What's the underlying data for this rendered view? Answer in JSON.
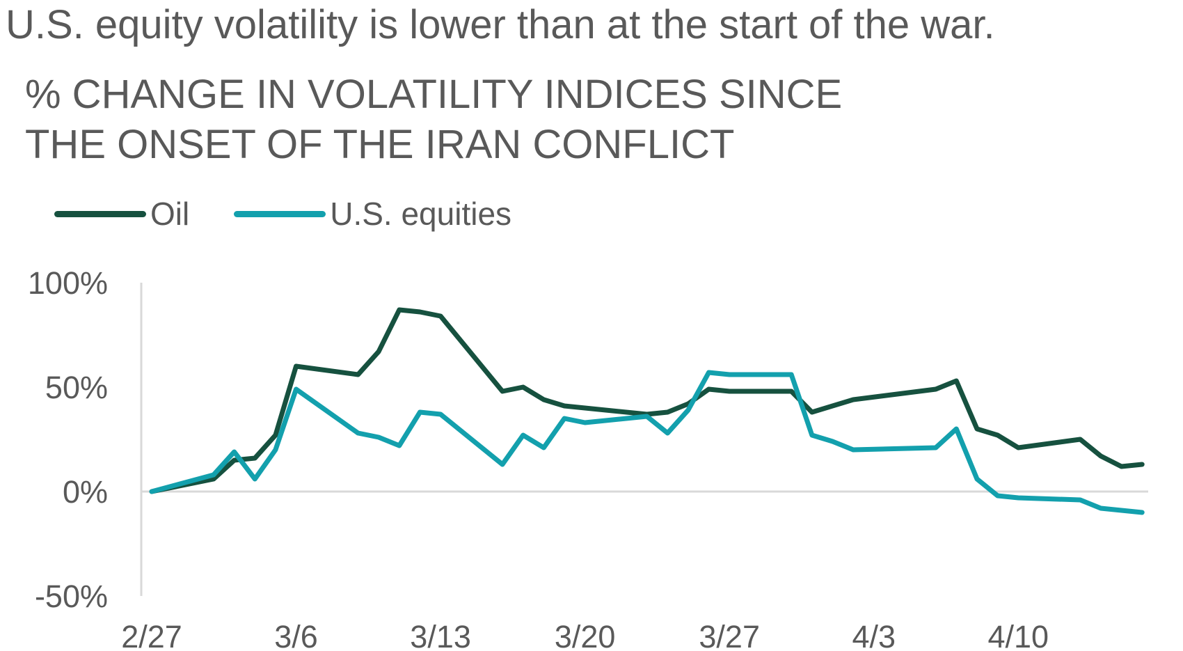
{
  "headline": "U.S. equity volatility is lower than at the start of the war.",
  "subtitle_lines": [
    "% CHANGE IN VOLATILITY INDICES SINCE",
    "THE ONSET OF THE IRAN CONFLICT"
  ],
  "colors": {
    "oil": "#16513F",
    "us_equities": "#13A0AD",
    "axis": "#D9D9D9",
    "text": "#595959"
  },
  "chart_data": {
    "type": "line",
    "title": "% CHANGE IN VOLATILITY INDICES SINCE THE ONSET OF THE IRAN CONFLICT",
    "xlabel": "",
    "ylabel": "",
    "ylim": [
      -50,
      100
    ],
    "y_ticks": [
      {
        "value": 100,
        "label": "100%"
      },
      {
        "value": 50,
        "label": "50%"
      },
      {
        "value": 0,
        "label": "0%"
      },
      {
        "value": -50,
        "label": "-50%"
      }
    ],
    "x_ticks": [
      {
        "date": "2/27",
        "label": "2/27"
      },
      {
        "date": "3/6",
        "label": "3/6"
      },
      {
        "date": "3/13",
        "label": "3/13"
      },
      {
        "date": "3/20",
        "label": "3/20"
      },
      {
        "date": "3/27",
        "label": "3/27"
      },
      {
        "date": "4/3",
        "label": "4/3"
      },
      {
        "date": "4/10",
        "label": "4/10"
      }
    ],
    "x": [
      "2/27",
      "3/2",
      "3/3",
      "3/4",
      "3/5",
      "3/6",
      "3/9",
      "3/10",
      "3/11",
      "3/12",
      "3/13",
      "3/16",
      "3/17",
      "3/18",
      "3/19",
      "3/20",
      "3/23",
      "3/24",
      "3/25",
      "3/26",
      "3/27",
      "3/30",
      "3/31",
      "4/1",
      "4/2",
      "4/6",
      "4/7",
      "4/8",
      "4/9",
      "4/10",
      "4/13",
      "4/14",
      "4/15",
      "4/16"
    ],
    "legend_position": "top-left",
    "grid": false,
    "series": [
      {
        "name": "Oil",
        "color": "#16513F",
        "values": [
          0,
          6,
          15,
          16,
          27,
          60,
          56,
          67,
          87,
          86,
          84,
          48,
          50,
          44,
          41,
          40,
          37,
          38,
          42,
          49,
          48,
          48,
          38,
          41,
          44,
          49,
          53,
          30,
          27,
          21,
          25,
          17,
          12,
          13
        ]
      },
      {
        "name": "U.S. equities",
        "color": "#13A0AD",
        "values": [
          0,
          8,
          19,
          6,
          20,
          49,
          28,
          26,
          22,
          38,
          37,
          13,
          27,
          21,
          35,
          33,
          36,
          28,
          39,
          57,
          56,
          56,
          27,
          24,
          20,
          21,
          30,
          6,
          -2,
          -3,
          -4,
          -8,
          -9,
          -10
        ]
      }
    ]
  }
}
